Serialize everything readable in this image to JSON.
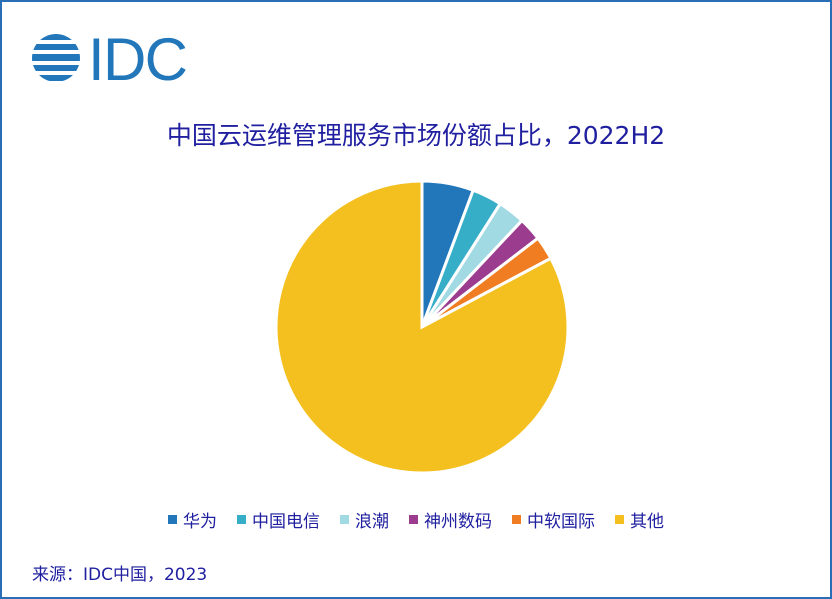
{
  "logo_text": "IDC",
  "chart_data": {
    "type": "pie",
    "title": "中国云运维管理服务市场份额占比，2022H2",
    "categories": [
      "华为",
      "中国电信",
      "浪潮",
      "神州数码",
      "中软国际",
      "其他"
    ],
    "values": [
      5.7,
      3.3,
      3.0,
      2.6,
      2.6,
      82.8
    ],
    "unit": "%",
    "colors": [
      "#2277bb",
      "#36aec8",
      "#a2dae4",
      "#9b3c8f",
      "#f07d22",
      "#f4c01f"
    ],
    "legend_position": "bottom"
  },
  "source": "来源：IDC中国，2023"
}
